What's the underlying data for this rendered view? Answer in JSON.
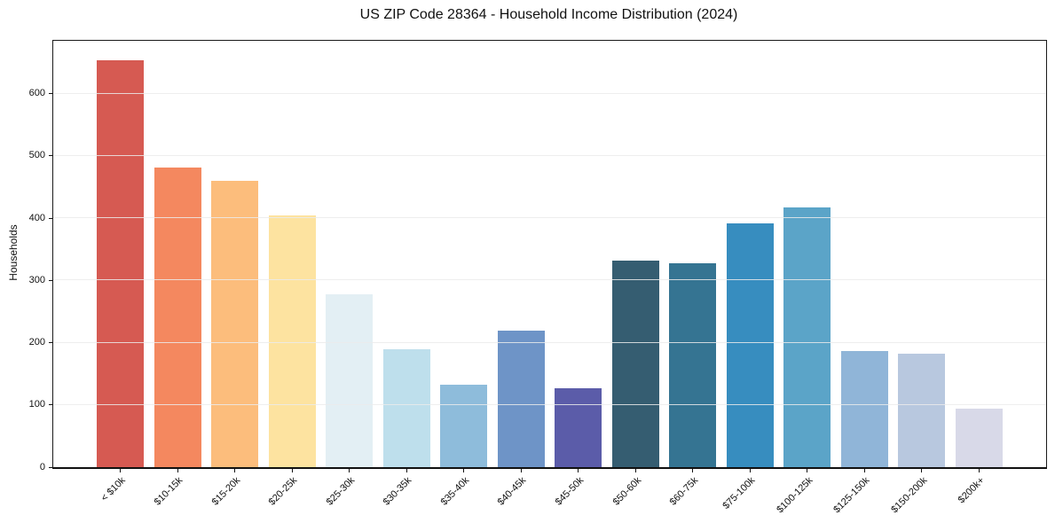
{
  "chart_data": {
    "type": "bar",
    "title": "US ZIP Code 28364 - Household Income Distribution (2024)",
    "xlabel": "",
    "ylabel": "Households",
    "categories": [
      "< $10k",
      "$10-15k",
      "$15-20k",
      "$20-25k",
      "$25-30k",
      "$30-35k",
      "$35-40k",
      "$40-45k",
      "$45-50k",
      "$50-60k",
      "$60-75k",
      "$75-100k",
      "$100-125k",
      "$125-150k",
      "$150-200k",
      "$200k+"
    ],
    "values": [
      653,
      481,
      460,
      404,
      278,
      190,
      133,
      219,
      127,
      332,
      328,
      391,
      417,
      186,
      183,
      94
    ],
    "bar_colors": [
      "#d65a52",
      "#f4885f",
      "#fcbd7c",
      "#fde3a0",
      "#e3eff4",
      "#bedfec",
      "#8ebcdb",
      "#6e94c7",
      "#5b5ca9",
      "#355d71",
      "#357492",
      "#378dbf",
      "#5ba4c8",
      "#90b5d8",
      "#b8c8df",
      "#d8d9e8"
    ],
    "yticks": [
      0,
      100,
      200,
      300,
      400,
      500,
      600
    ],
    "ylim": [
      0,
      685
    ],
    "grid": "horizontal-only",
    "gridline_color": "#ebebeb",
    "axis_color": "#1a1a1a",
    "background": "#ffffff",
    "legend": "none"
  }
}
